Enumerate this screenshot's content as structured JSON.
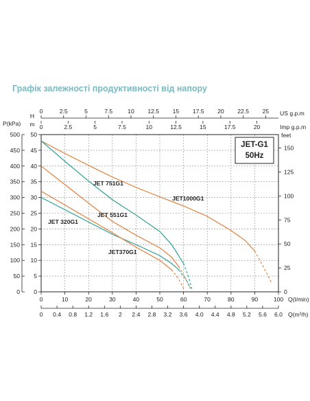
{
  "header": {
    "title": "Графік залежності продуктивності від напору"
  },
  "chart_data": {
    "type": "line",
    "box": {
      "line1": "JET-G1",
      "line2": "50Hz"
    },
    "axes": {
      "x_main": {
        "label": "Q(l/min)",
        "range": [
          0,
          100
        ],
        "ticks": [
          0,
          10,
          20,
          30,
          40,
          50,
          60,
          70,
          80,
          90,
          100
        ]
      },
      "x_m3h": {
        "label": "Q(m³/h)",
        "range": [
          0,
          6.0
        ],
        "ticks": [
          "0",
          "0.4",
          "0.8",
          "1.2",
          "1.6",
          "2",
          "2.4",
          "2.8",
          "3.2",
          "3.6",
          "4.0",
          "4.4",
          "4.8",
          "5.2",
          "5.6",
          "6.0"
        ]
      },
      "x_us": {
        "label": "US  g.p.m",
        "range": [
          0,
          26.42
        ],
        "ticks": [
          "0",
          "2.5",
          "5",
          "7.5",
          "10",
          "12.5",
          "15",
          "17.5",
          "20",
          "22.5",
          "25"
        ]
      },
      "x_imp": {
        "label": "Imp  g.p.m",
        "range": [
          0,
          22
        ],
        "ticks": [
          "0",
          "2.5",
          "5",
          "7.5",
          "10",
          "12.5",
          "15",
          "17.5",
          "20"
        ]
      },
      "y_kpa": {
        "label": "P(kPa)",
        "range": [
          0,
          500
        ],
        "ticks": [
          0,
          50,
          100,
          150,
          200,
          250,
          300,
          350,
          400,
          450,
          500
        ]
      },
      "y_m": {
        "label": "H\nm",
        "range": [
          0,
          50
        ],
        "ticks": [
          0,
          5,
          10,
          15,
          20,
          25,
          30,
          35,
          40,
          45,
          50
        ]
      },
      "y_feet": {
        "label": "feet",
        "range": [
          0,
          164
        ],
        "ticks": [
          0,
          25,
          50,
          75,
          100,
          125,
          150
        ]
      },
      "grid": true
    },
    "series": [
      {
        "name": "JET1000G1",
        "color": "#e0894a",
        "x": [
          0,
          10,
          20,
          30,
          40,
          50,
          60,
          70,
          80,
          86,
          90,
          94,
          97
        ],
        "y": [
          48,
          44,
          40.2,
          36.5,
          33.2,
          30.2,
          27.3,
          24,
          19.5,
          16.3,
          13,
          7.5,
          3
        ]
      },
      {
        "name": "JET 751G1",
        "color": "#3aa59d",
        "x": [
          0,
          10,
          20,
          30,
          40,
          50,
          55,
          60,
          62,
          63.5
        ],
        "y": [
          48,
          41.5,
          35.2,
          29.3,
          24.4,
          19.2,
          15,
          9,
          5,
          1
        ]
      },
      {
        "name": "JET 551G1",
        "color": "#e0894a",
        "x": [
          0,
          10,
          20,
          30,
          40,
          50,
          55,
          58,
          61,
          63
        ],
        "y": [
          40,
          34.1,
          28.2,
          22.4,
          18,
          14,
          11,
          8,
          4,
          1
        ]
      },
      {
        "name": "JET 320G1",
        "color": "#3aa59d",
        "x": [
          0,
          10,
          20,
          30,
          40,
          50,
          55,
          58,
          61,
          63
        ],
        "y": [
          30,
          26.1,
          22.2,
          18.3,
          15,
          11.5,
          9,
          7,
          4,
          1
        ]
      },
      {
        "name": "JET370G1",
        "color": "#e0894a",
        "x": [
          0,
          10,
          20,
          30,
          40,
          50,
          55,
          58,
          60
        ],
        "y": [
          32,
          27.6,
          23.2,
          18.8,
          14.2,
          10,
          7,
          4,
          1
        ]
      }
    ]
  }
}
